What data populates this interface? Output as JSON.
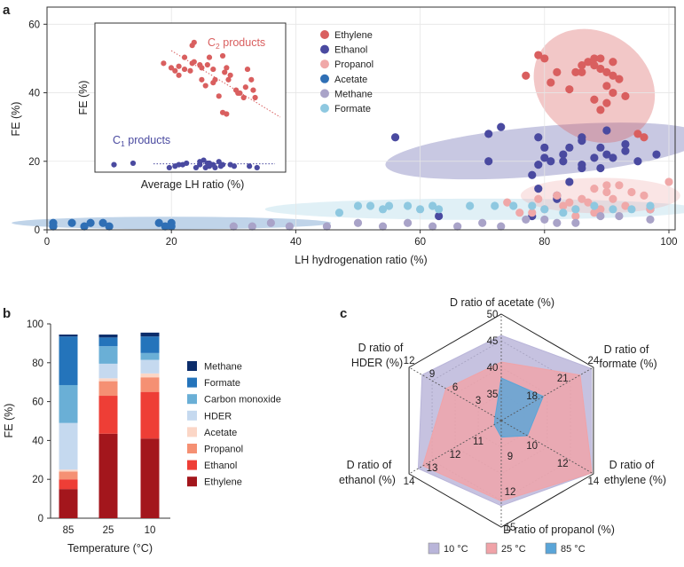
{
  "panel_a": {
    "letter": "a",
    "chart_data": {
      "type": "scatter",
      "xlabel": "LH hydrogenation ratio (%)",
      "ylabel": "FE (%)",
      "xlim": [
        0,
        101
      ],
      "ylim": [
        0,
        65
      ],
      "xticks": [
        "0",
        "20",
        "40",
        "60",
        "80",
        "100"
      ],
      "yticks": [
        "0",
        "20",
        "40",
        "60"
      ],
      "series": [
        {
          "name": "Ethylene",
          "color": "#d95f5f",
          "points": [
            [
              79,
              51
            ],
            [
              80,
              50
            ],
            [
              82,
              46
            ],
            [
              86,
              48
            ],
            [
              86,
              46
            ],
            [
              87,
              49
            ],
            [
              88,
              50
            ],
            [
              88,
              48
            ],
            [
              89,
              47
            ],
            [
              89,
              50
            ],
            [
              90,
              46
            ],
            [
              91,
              49
            ],
            [
              91,
              45
            ],
            [
              90,
              42
            ],
            [
              92,
              44
            ],
            [
              85,
              46
            ],
            [
              81,
              43
            ],
            [
              84,
              41
            ],
            [
              88,
              38
            ],
            [
              90,
              37
            ],
            [
              91,
              40
            ],
            [
              93,
              39
            ],
            [
              89,
              35
            ],
            [
              95,
              28
            ],
            [
              96,
              27
            ],
            [
              77,
              45
            ]
          ]
        },
        {
          "name": "Ethanol",
          "color": "#4a4aa0",
          "points": [
            [
              56,
              27
            ],
            [
              71,
              28
            ],
            [
              73,
              30
            ],
            [
              79,
              27
            ],
            [
              80,
              24
            ],
            [
              81,
              20
            ],
            [
              83,
              20
            ],
            [
              84,
              24
            ],
            [
              86,
              19
            ],
            [
              86,
              27
            ],
            [
              88,
              21
            ],
            [
              89,
              24
            ],
            [
              89,
              18
            ],
            [
              90,
              22
            ],
            [
              90,
              29
            ],
            [
              91,
              21
            ],
            [
              93,
              23
            ],
            [
              95,
              20
            ],
            [
              98,
              22
            ],
            [
              79,
              12
            ],
            [
              82,
              10
            ],
            [
              84,
              14
            ],
            [
              86,
              18
            ],
            [
              78,
              16
            ],
            [
              79,
              19
            ],
            [
              83,
              22
            ],
            [
              86,
              26
            ],
            [
              80,
              21
            ],
            [
              93,
              25
            ],
            [
              71,
              20
            ],
            [
              63,
              4
            ],
            [
              78,
              4
            ],
            [
              82,
              9
            ],
            [
              97,
              6
            ]
          ]
        },
        {
          "name": "Propanol",
          "color": "#f0a8a8",
          "points": [
            [
              74,
              8
            ],
            [
              76,
              5
            ],
            [
              79,
              9
            ],
            [
              80,
              6
            ],
            [
              82,
              10
            ],
            [
              83,
              7
            ],
            [
              84,
              8
            ],
            [
              85,
              6
            ],
            [
              86,
              9
            ],
            [
              87,
              8
            ],
            [
              88,
              12
            ],
            [
              89,
              6
            ],
            [
              90,
              11
            ],
            [
              90,
              13
            ],
            [
              91,
              9
            ],
            [
              92,
              13
            ],
            [
              93,
              7
            ],
            [
              94,
              11
            ],
            [
              96,
              10
            ],
            [
              97,
              6
            ],
            [
              100,
              14
            ],
            [
              88,
              5
            ],
            [
              85,
              4
            ],
            [
              78,
              5
            ]
          ]
        },
        {
          "name": "Acetate",
          "color": "#2f6fb5",
          "points": [
            [
              1,
              2
            ],
            [
              1,
              1
            ],
            [
              4,
              2
            ],
            [
              6,
              1
            ],
            [
              7,
              2
            ],
            [
              9,
              2
            ],
            [
              10,
              1
            ],
            [
              18,
              2
            ],
            [
              19,
              1
            ],
            [
              20,
              2
            ],
            [
              20,
              1
            ]
          ]
        },
        {
          "name": "Methane",
          "color": "#a9a3c8",
          "points": [
            [
              30,
              1
            ],
            [
              33,
              1
            ],
            [
              36,
              2
            ],
            [
              39,
              1
            ],
            [
              45,
              1
            ],
            [
              50,
              2
            ],
            [
              54,
              1
            ],
            [
              58,
              2
            ],
            [
              62,
              1
            ],
            [
              66,
              1
            ],
            [
              70,
              2
            ],
            [
              73,
              1
            ],
            [
              77,
              3
            ],
            [
              80,
              3
            ],
            [
              82,
              2
            ],
            [
              85,
              2
            ],
            [
              89,
              4
            ],
            [
              92,
              4
            ],
            [
              97,
              3
            ]
          ]
        },
        {
          "name": "Formate",
          "color": "#8ec8e0",
          "points": [
            [
              47,
              5
            ],
            [
              50,
              7
            ],
            [
              52,
              7
            ],
            [
              54,
              6
            ],
            [
              55,
              7
            ],
            [
              58,
              7
            ],
            [
              60,
              6
            ],
            [
              62,
              7
            ],
            [
              63,
              6
            ],
            [
              68,
              7
            ],
            [
              72,
              7
            ],
            [
              75,
              7
            ],
            [
              78,
              7
            ],
            [
              80,
              6
            ],
            [
              83,
              5
            ],
            [
              85,
              6
            ],
            [
              88,
              7
            ],
            [
              91,
              6
            ],
            [
              94,
              6
            ],
            [
              97,
              7
            ]
          ]
        }
      ],
      "legend": [
        "Ethylene",
        "Ethanol",
        "Propanol",
        "Acetate",
        "Methane",
        "Formate"
      ],
      "legend_position": "top-right"
    },
    "inset": {
      "xlabel": "Average LH ratio (%)",
      "ylabel": "FE (%)",
      "label_c2_main": "C",
      "label_c2_sub": "2",
      "label_c2_rest": " products",
      "label_c1_main": "C",
      "label_c1_sub": "1",
      "label_c1_rest": " products",
      "chart_data": {
        "type": "scatter",
        "xlim": [
          0,
          100
        ],
        "ylim": [
          0,
          100
        ],
        "series": [
          {
            "name": "C2 products",
            "color": "#d95f5f",
            "points": [
              [
                36,
                73
              ],
              [
                40,
                70
              ],
              [
                42,
                68
              ],
              [
                44,
                71
              ],
              [
                44,
                65
              ],
              [
                47,
                69
              ],
              [
                47,
                77
              ],
              [
                50,
                68
              ],
              [
                51,
                73
              ],
              [
                51,
                85
              ],
              [
                52,
                87
              ],
              [
                52,
                74
              ],
              [
                56,
                62
              ],
              [
                56,
                70
              ],
              [
                59,
                72
              ],
              [
                60,
                77
              ],
              [
                62,
                69
              ],
              [
                62,
                60
              ],
              [
                63,
                62
              ],
              [
                67,
                78
              ],
              [
                68,
                67
              ],
              [
                69,
                70
              ],
              [
                70,
                62
              ],
              [
                71,
                65
              ],
              [
                74,
                55
              ],
              [
                75,
                53
              ],
              [
                76,
                53
              ],
              [
                78,
                50
              ],
              [
                79,
                57
              ],
              [
                80,
                69
              ],
              [
                82,
                62
              ],
              [
                83,
                55
              ],
              [
                84,
                50
              ],
              [
                65,
                51
              ],
              [
                67,
                40
              ],
              [
                69,
                39
              ],
              [
                55,
                72
              ],
              [
                58,
                58
              ]
            ]
          },
          {
            "name": "C1 products",
            "color": "#4a4aa0",
            "points": [
              [
                10,
                5
              ],
              [
                20,
                6
              ],
              [
                39,
                3
              ],
              [
                42,
                4
              ],
              [
                44,
                5
              ],
              [
                46,
                5
              ],
              [
                48,
                6
              ],
              [
                53,
                3
              ],
              [
                55,
                7
              ],
              [
                58,
                3
              ],
              [
                59,
                6
              ],
              [
                60,
                6
              ],
              [
                60,
                4
              ],
              [
                62,
                5
              ],
              [
                63,
                3
              ],
              [
                65,
                7
              ],
              [
                66,
                4
              ],
              [
                67,
                5
              ],
              [
                71,
                5
              ],
              [
                73,
                4
              ],
              [
                81,
                4
              ],
              [
                85,
                3
              ],
              [
                55,
                5
              ],
              [
                57,
                8
              ]
            ]
          }
        ]
      }
    }
  },
  "panel_b": {
    "letter": "b",
    "chart_data": {
      "type": "bar",
      "stacked": true,
      "xlabel": "Temperature (°C)",
      "ylabel": "FE (%)",
      "ylim": [
        0,
        100
      ],
      "yticks": [
        "0",
        "20",
        "40",
        "60",
        "80",
        "100"
      ],
      "categories": [
        "85",
        "25",
        "10"
      ],
      "series": [
        {
          "name": "Ethylene",
          "color": "#a3161c",
          "values": [
            15,
            43.5,
            41
          ]
        },
        {
          "name": "Ethanol",
          "color": "#ee3e36",
          "values": [
            5,
            19.5,
            24
          ]
        },
        {
          "name": "Propanol",
          "color": "#f59073",
          "values": [
            4,
            7.5,
            7.5
          ]
        },
        {
          "name": "Acetate",
          "color": "#fbd6c6",
          "values": [
            1,
            1.5,
            2
          ]
        },
        {
          "name": "HDER",
          "color": "#c5d9ef",
          "values": [
            24,
            7.5,
            7
          ]
        },
        {
          "name": "Carbon monoxide",
          "color": "#6aafd6",
          "values": [
            19.5,
            9,
            3.5
          ]
        },
        {
          "name": "Formate",
          "color": "#2474bb",
          "values": [
            25,
            4.5,
            8.5
          ]
        },
        {
          "name": "Methane",
          "color": "#0c2d6b",
          "values": [
            1,
            1.5,
            2
          ]
        }
      ],
      "legend": [
        "Methane",
        "Formate",
        "Carbon monoxide",
        "HDER",
        "Acetate",
        "Propanol",
        "Ethanol",
        "Ethylene"
      ],
      "legend_position": "right"
    }
  },
  "panel_c": {
    "letter": "c",
    "chart_data": {
      "type": "radar",
      "axes": [
        {
          "name": "D ratio of acetate (%)",
          "ticks": [
            "35",
            "40",
            "45",
            "50"
          ],
          "range": [
            30,
            50
          ]
        },
        {
          "name_line1": "D ratio of",
          "name_line2": "formate (%)",
          "ticks": [
            "18",
            "21",
            "24"
          ],
          "range": [
            15,
            24
          ]
        },
        {
          "name_line1": "D ratio of",
          "name_line2": "ethylene (%)",
          "ticks": [
            "10",
            "12",
            "14"
          ],
          "range": [
            8,
            14
          ]
        },
        {
          "name": "D ratio of propanol (%)",
          "ticks": [
            "9",
            "12",
            "15"
          ],
          "range": [
            6,
            15
          ]
        },
        {
          "name_line1": "D ratio of",
          "name_line2": "ethanol (%)",
          "ticks": [
            "11",
            "12",
            "13",
            "14"
          ],
          "range": [
            10,
            14
          ]
        },
        {
          "name_line1": "D ratio of",
          "name_line2": "HDER (%)",
          "ticks": [
            "3",
            "6",
            "9",
            "12"
          ],
          "range": [
            0,
            12
          ]
        }
      ],
      "series": [
        {
          "name": "10 °C",
          "color": "#b9b5d9",
          "values": [
            46,
            23.8,
            13.9,
            13.2,
            13.6,
            10.3
          ]
        },
        {
          "name": "25 °C",
          "color": "#f0a3a8",
          "values": [
            41,
            22.7,
            13.9,
            12.8,
            13.4,
            7.2
          ]
        },
        {
          "name": "85 °C",
          "color": "#5aa5d8",
          "values": [
            38,
            19.1,
            9.7,
            7.4,
            10.3,
            0.8
          ]
        }
      ],
      "legend": [
        "10 °C",
        "25 °C",
        "85 °C"
      ],
      "legend_position": "bottom"
    }
  }
}
